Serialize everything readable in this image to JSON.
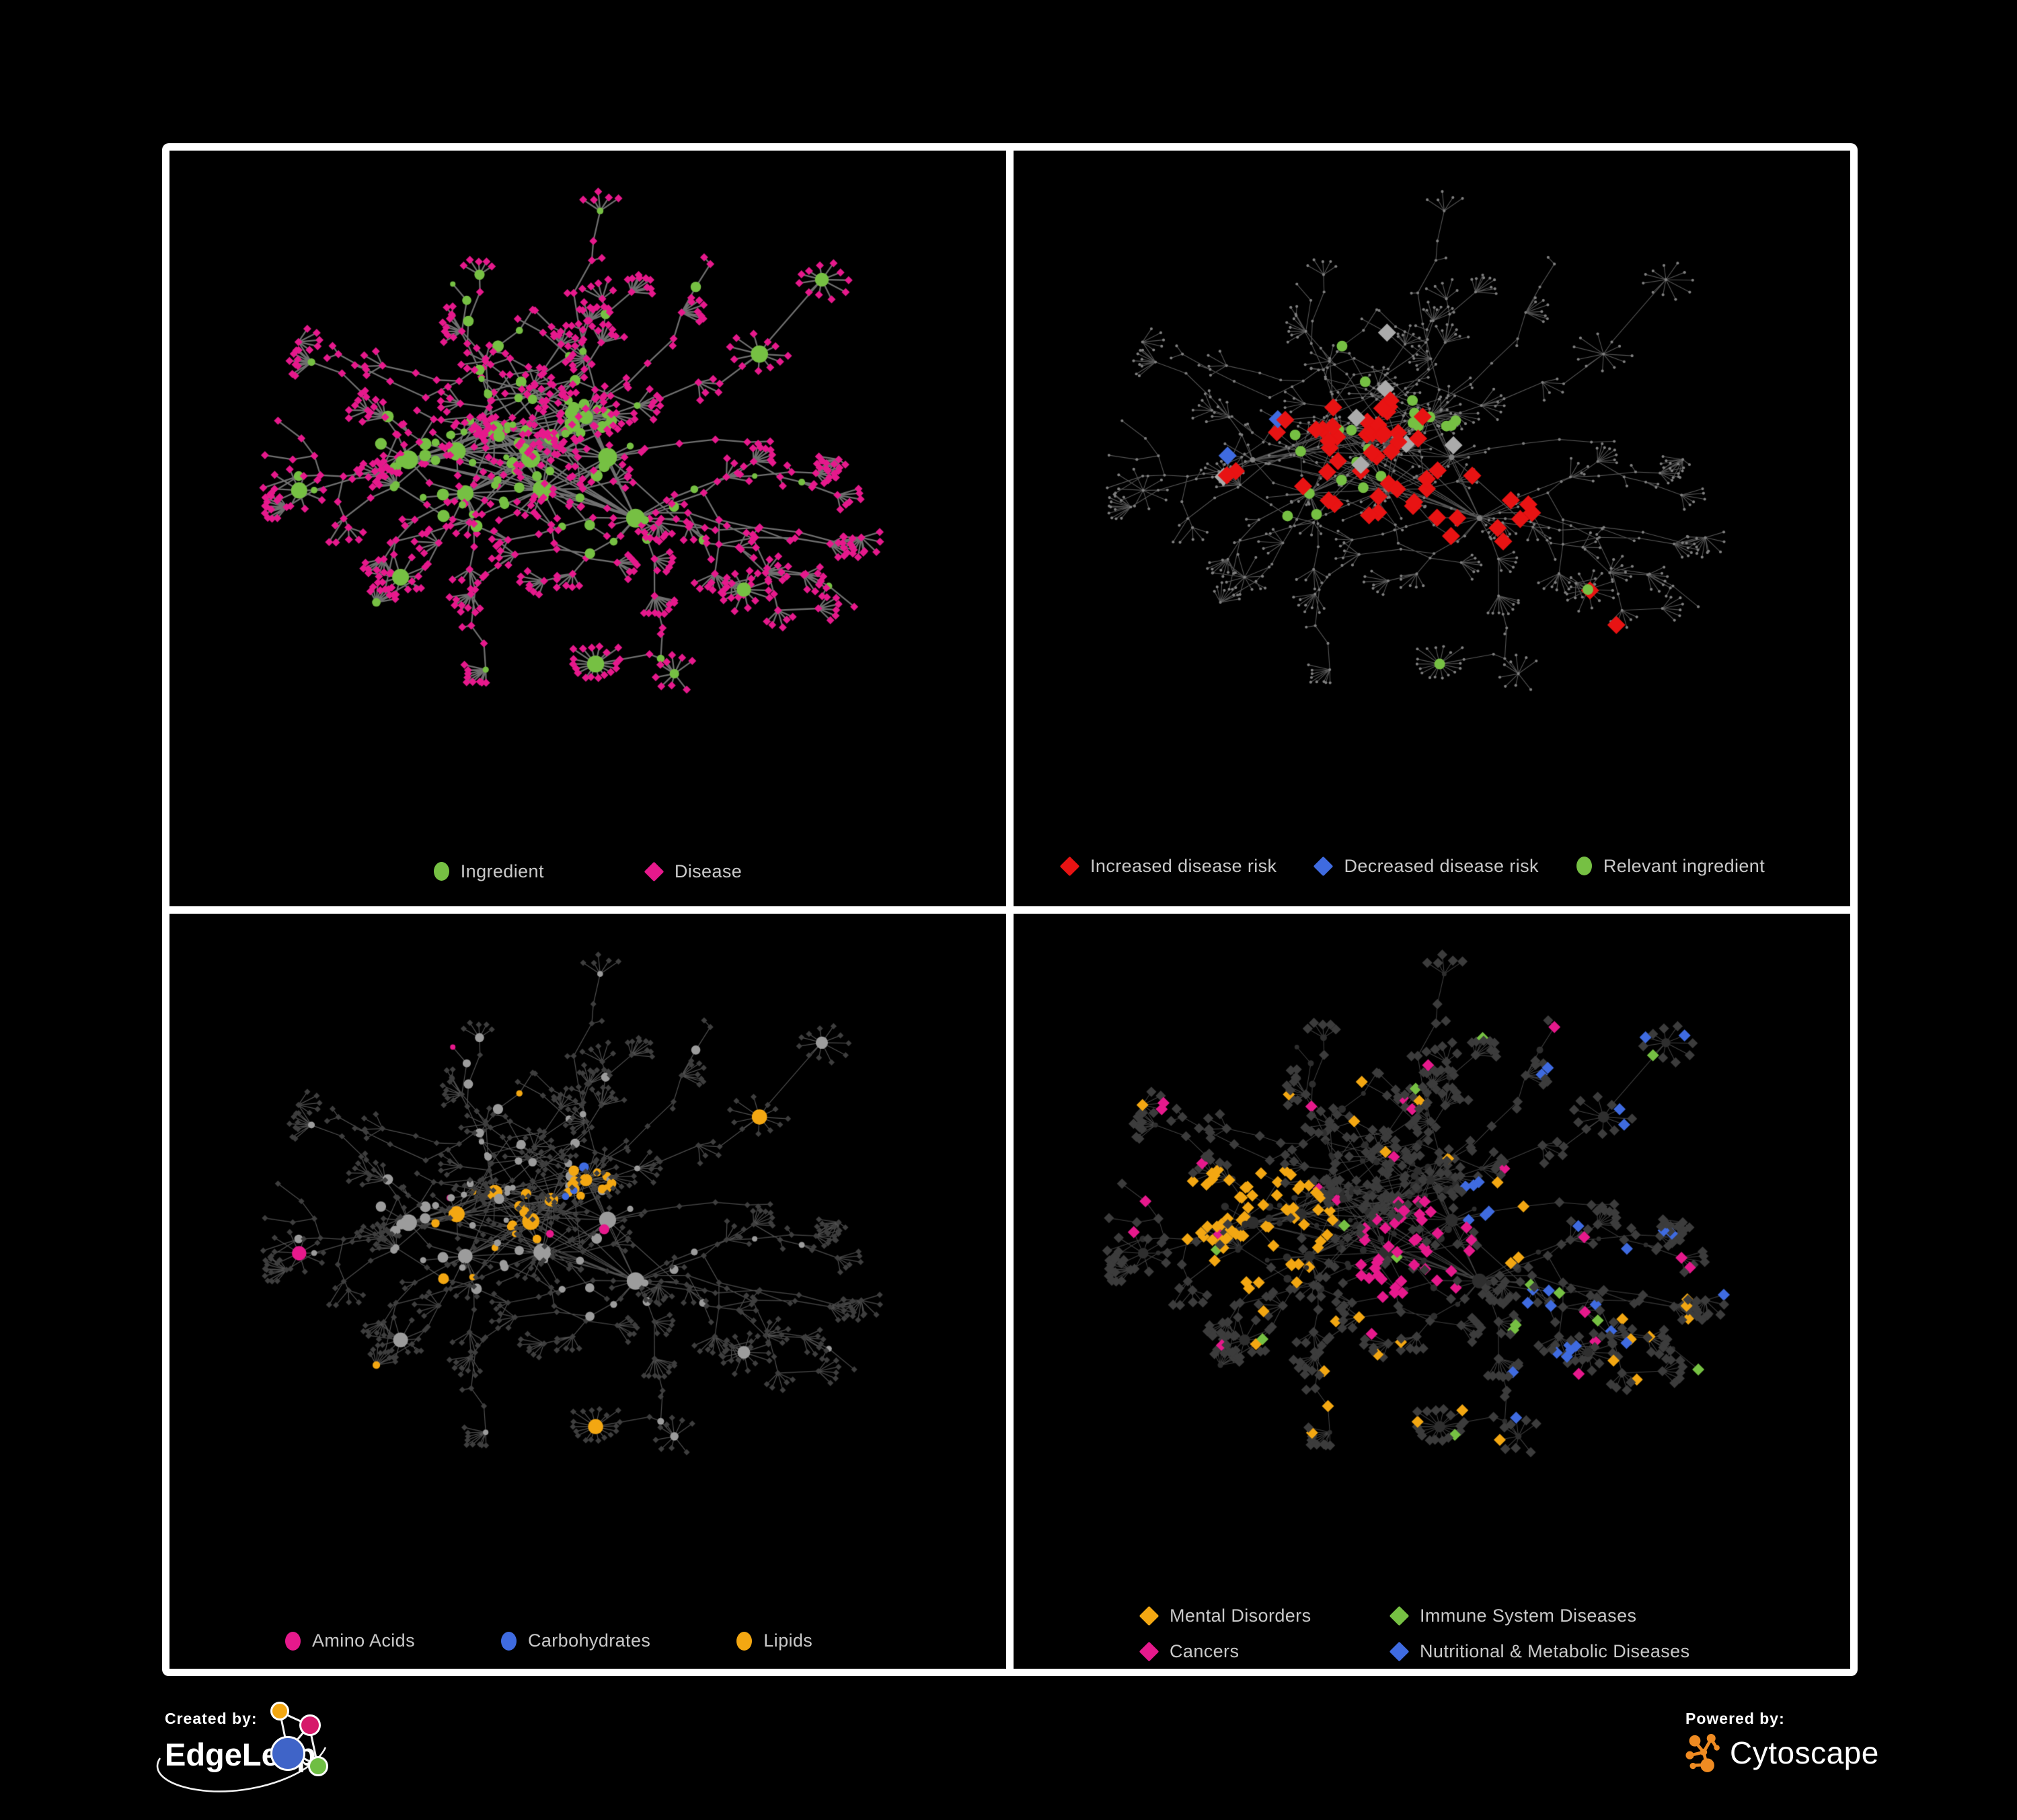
{
  "figure": {
    "type": "network-visualization-figure",
    "background": "#000000",
    "frame_color": "#FFFFFF",
    "panel_count": 4
  },
  "branding": {
    "created_by_label": "Created by:",
    "created_by_name": "EdgeLeap",
    "powered_by_label": "Powered by:",
    "powered_by_name": "Cytoscape",
    "cytoscape_logo_color": "#EF8B22",
    "edgeleap_logo_colors": [
      "#F3A712",
      "#D6196A",
      "#3F64C8",
      "#6FBE44"
    ]
  },
  "panels": [
    {
      "id": "ingredient-disease-network",
      "position": "top-left",
      "legend": [
        {
          "label": "Ingredient",
          "shape": "circle",
          "color": "#76C043"
        },
        {
          "label": "Disease",
          "shape": "diamond",
          "color": "#E6198C"
        }
      ],
      "style": {
        "edge_color": "#757575",
        "edge_width": 2.3,
        "edge_opacity": 0.95,
        "ingredient_color": "#76C043",
        "disease_color": "#E6198C"
      }
    },
    {
      "id": "disease-risk-network",
      "position": "top-right",
      "legend": [
        {
          "label": "Increased disease risk",
          "shape": "diamond",
          "color": "#E81313"
        },
        {
          "label": "Decreased disease risk",
          "shape": "diamond",
          "color": "#3F6BE0"
        },
        {
          "label": "Relevant ingredient",
          "shape": "circle",
          "color": "#76C043"
        }
      ],
      "style": {
        "edge_color": "#686868",
        "edge_width": 1.15,
        "edge_opacity": 0.8,
        "base_node_color": "#7F7F7F",
        "neutral_highlight_color": "#ABABAB"
      }
    },
    {
      "id": "nutrient-class-network",
      "position": "bottom-left",
      "legend": [
        {
          "label": "Amino Acids",
          "shape": "circle",
          "color": "#E6198C"
        },
        {
          "label": "Carbohydrates",
          "shape": "circle",
          "color": "#3F6BE0"
        },
        {
          "label": "Lipids",
          "shape": "circle",
          "color": "#F3A712"
        }
      ],
      "style": {
        "edge_color": "#9B9B9B",
        "edge_width": 1.25,
        "edge_opacity": 0.5,
        "ingredient_color": "#9C9C9C",
        "disease_color": "#3E3E3E"
      }
    },
    {
      "id": "disease-class-network",
      "position": "bottom-right",
      "legend": [
        {
          "label": "Mental Disorders",
          "shape": "diamond",
          "color": "#F3A712"
        },
        {
          "label": "Immune System Diseases",
          "shape": "diamond",
          "color": "#76C043"
        },
        {
          "label": "Cancers",
          "shape": "diamond",
          "color": "#E6198C"
        },
        {
          "label": "Nutritional & Metabolic Diseases",
          "shape": "diamond",
          "color": "#3F6BE0"
        }
      ],
      "style": {
        "edge_color": "#9B9B9B",
        "edge_width": 1.05,
        "edge_opacity": 0.42,
        "ingredient_color": "#2E2E2E",
        "disease_color": "#3C3C3C"
      }
    }
  ],
  "network_style": {
    "layout_seed": 11,
    "highlight_seed": 99,
    "highlight_colors": {
      "red": "#E81313",
      "blue": "#3F6BE0",
      "silver": "#ABABAB",
      "green": "#76C043",
      "orange": "#F3A712",
      "pink": "#E6198C"
    }
  }
}
